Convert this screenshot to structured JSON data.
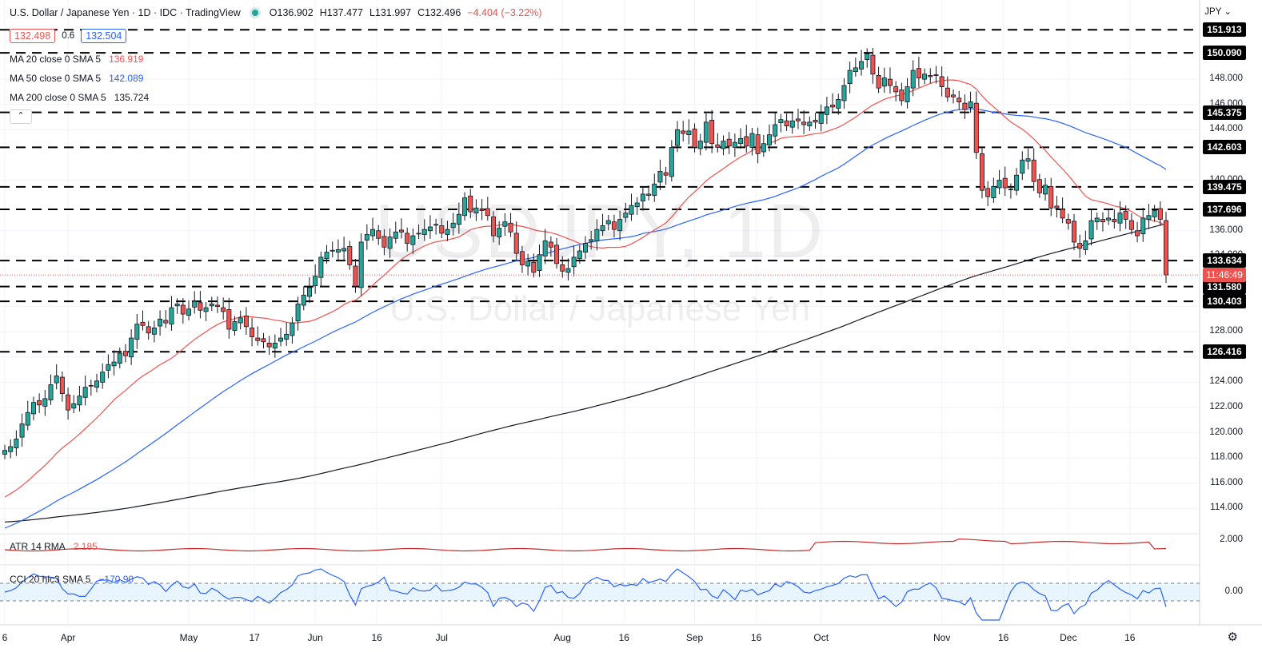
{
  "header": {
    "title": "U.S. Dollar / Japanese Yen · 1D · IDC · TradingView",
    "open": "O136.902",
    "high": "H137.477",
    "low": "L131.997",
    "close": "C132.496",
    "change": "−4.404 (−3.22%)"
  },
  "quote": {
    "sell": "132.498",
    "spread": "0.6",
    "buy": "132.504"
  },
  "indicators": [
    {
      "label": "MA 20 close 0 SMA 5",
      "value": "136.919",
      "color": "#ef5350"
    },
    {
      "label": "MA 50 close 0 SMA 5",
      "value": "142.089",
      "color": "#2962ff"
    },
    {
      "label": "MA 200 close 0 SMA 5",
      "value": "135.724",
      "color": "#131722"
    }
  ],
  "collapse_glyph": "⌃",
  "watermark": {
    "symbol": "USDJPY, 1D",
    "name": "U.S. Dollar / Japanese Yen"
  },
  "currency_menu": "JPY ⌄",
  "countdown": "11:46:49",
  "atr": {
    "label": "ATR 14 RMA",
    "value": "2.185",
    "axis_label": "2.000"
  },
  "cci": {
    "label": "CCI 20 hlc3 SMA 5",
    "value": "−170.90",
    "axis_label": "0.00"
  },
  "settings_icon": "gear-icon",
  "chart_data": {
    "type": "candlestick",
    "y_scale_ticks": [
      "114.000",
      "116.000",
      "118.000",
      "120.000",
      "122.000",
      "124.000",
      "126.000",
      "128.000",
      "130.000",
      "134.000",
      "136.000",
      "140.000",
      "144.000",
      "146.000",
      "148.000"
    ],
    "ylim": [
      112.0,
      152.5
    ],
    "horizontal_levels": [
      "151.913",
      "150.090",
      "145.375",
      "142.603",
      "139.475",
      "137.696",
      "133.634",
      "131.580",
      "130.403",
      "126.416"
    ],
    "current_price": 132.496,
    "x_tick_labels": [
      {
        "label": "6",
        "month": "Mar",
        "day": 16
      },
      {
        "label": "Apr",
        "month": "Apr",
        "day": 1
      },
      {
        "label": "May",
        "month": "May",
        "day": 1
      },
      {
        "label": "17",
        "month": "May",
        "day": 17
      },
      {
        "label": "Jun",
        "month": "Jun",
        "day": 1
      },
      {
        "label": "16",
        "month": "Jun",
        "day": 16
      },
      {
        "label": "Jul",
        "month": "Jul",
        "day": 1
      },
      {
        "label": "Aug",
        "month": "Aug",
        "day": 1
      },
      {
        "label": "16",
        "month": "Aug",
        "day": 16
      },
      {
        "label": "Sep",
        "month": "Sep",
        "day": 1
      },
      {
        "label": "16",
        "month": "Sep",
        "day": 16
      },
      {
        "label": "Oct",
        "month": "Oct",
        "day": 1
      },
      {
        "label": "Nov",
        "month": "Nov",
        "day": 1
      },
      {
        "label": "16",
        "month": "Nov",
        "day": 16
      },
      {
        "label": "Dec",
        "month": "Dec",
        "day": 1
      },
      {
        "label": "16",
        "month": "Dec",
        "day": 16
      }
    ],
    "close_series": [
      118.6,
      118.9,
      119.5,
      120.7,
      121.6,
      122.4,
      122.2,
      122.7,
      123.8,
      124.5,
      123.1,
      121.8,
      122.3,
      122.9,
      123.6,
      123.7,
      124.1,
      124.8,
      125.4,
      125.6,
      126.3,
      126.1,
      127.5,
      128.6,
      128.5,
      127.9,
      128.3,
      129.0,
      128.7,
      129.9,
      130.2,
      129.4,
      129.8,
      130.4,
      129.7,
      129.9,
      130.2,
      130.0,
      129.6,
      128.2,
      128.8,
      129.1,
      128.4,
      127.6,
      127.3,
      127.2,
      126.8,
      127.1,
      127.5,
      127.8,
      128.7,
      130.2,
      130.9,
      131.5,
      132.4,
      133.9,
      134.3,
      134.4,
      134.5,
      134.6,
      133.3,
      131.6,
      135.1,
      135.7,
      136.1,
      135.4,
      134.7,
      135.5,
      135.9,
      135.9,
      135.0,
      135.6,
      135.8,
      136.1,
      136.3,
      136.5,
      135.8,
      136.1,
      136.6,
      137.3,
      138.6,
      137.5,
      137.8,
      137.6,
      137.2,
      135.6,
      136.2,
      136.7,
      135.9,
      134.2,
      133.3,
      133.6,
      132.7,
      134.1,
      135.2,
      134.7,
      133.4,
      132.8,
      133.0,
      133.9,
      134.4,
      135.0,
      135.3,
      136.1,
      136.4,
      136.8,
      136.1,
      136.9,
      137.4,
      138.0,
      138.2,
      138.9,
      138.9,
      139.7,
      140.7,
      140.4,
      142.6,
      144.0,
      143.7,
      143.9,
      142.6,
      143.1,
      144.6,
      142.9,
      142.6,
      143.1,
      142.7,
      143.0,
      143.3,
      142.7,
      143.7,
      142.1,
      142.9,
      143.6,
      144.4,
      144.8,
      144.3,
      144.7,
      144.7,
      144.4,
      144.6,
      144.6,
      145.3,
      145.8,
      145.8,
      146.4,
      147.5,
      148.7,
      148.9,
      149.4,
      150.0,
      148.4,
      147.3,
      148.1,
      147.5,
      147.0,
      146.3,
      147.4,
      148.7,
      148.1,
      148.4,
      148.2,
      148.3,
      147.4,
      146.6,
      146.6,
      146.2,
      145.6,
      146.2,
      142.2,
      139.2,
      138.7,
      139.5,
      140.0,
      139.4,
      139.3,
      140.4,
      141.6,
      141.7,
      139.9,
      139.0,
      139.6,
      137.8,
      137.8,
      137.0,
      136.6,
      135.1,
      134.6,
      135.2,
      136.8,
      137.0,
      136.7,
      137.0,
      136.7,
      137.4,
      136.9,
      136.1,
      135.6,
      137.0,
      137.2,
      137.6,
      136.9,
      132.5
    ],
    "ma20_start": 115.8,
    "ma50_start": 115.2,
    "ma200_start": 112.9
  }
}
